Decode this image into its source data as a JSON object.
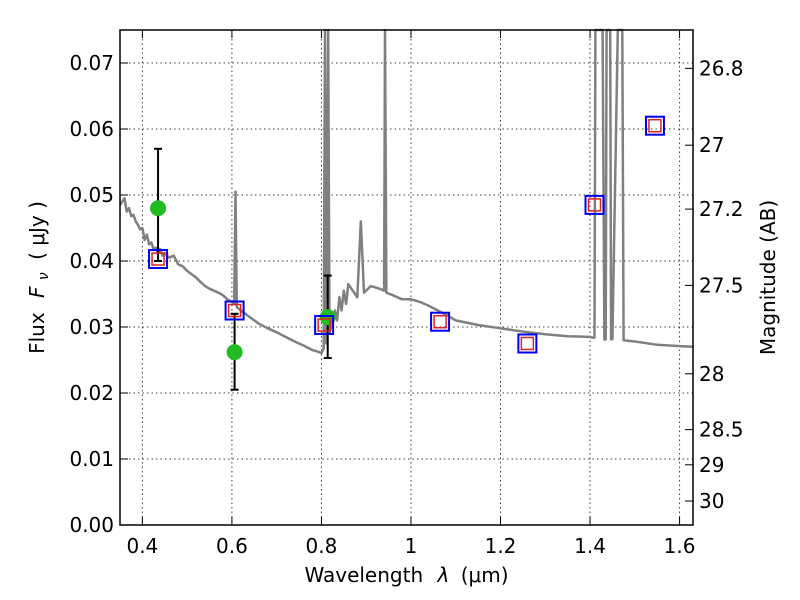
{
  "chart_data": {
    "type": "scatter",
    "title": "",
    "xlabel": "Wavelength",
    "xlabel_symbol": "λ",
    "xlabel_unit": "(μm)",
    "ylabel": "Flux",
    "ylabel_symbol": "F",
    "ylabel_subscript": "ν",
    "ylabel_unit": "( μJy )",
    "y2label": "Magnitude (AB)",
    "xlim": [
      0.35,
      1.63
    ],
    "ylim": [
      0.0,
      0.075
    ],
    "grid": true,
    "xticks": [
      {
        "value": 0.4,
        "label": "0.4"
      },
      {
        "value": 0.6,
        "label": "0.6"
      },
      {
        "value": 0.8,
        "label": "0.8"
      },
      {
        "value": 1.0,
        "label": "1"
      },
      {
        "value": 1.2,
        "label": "1.2"
      },
      {
        "value": 1.4,
        "label": "1.4"
      },
      {
        "value": 1.6,
        "label": "1.6"
      }
    ],
    "yticks": [
      {
        "value": 0.0,
        "label": "0.00"
      },
      {
        "value": 0.01,
        "label": "0.01"
      },
      {
        "value": 0.02,
        "label": "0.02"
      },
      {
        "value": 0.03,
        "label": "0.03"
      },
      {
        "value": 0.04,
        "label": "0.04"
      },
      {
        "value": 0.05,
        "label": "0.05"
      },
      {
        "value": 0.06,
        "label": "0.06"
      },
      {
        "value": 0.07,
        "label": "0.07"
      }
    ],
    "y2ticks": [
      {
        "value": 26.8,
        "label": "26.8"
      },
      {
        "value": 27.0,
        "label": "27"
      },
      {
        "value": 27.2,
        "label": "27.2"
      },
      {
        "value": 27.5,
        "label": "27.5"
      },
      {
        "value": 28.0,
        "label": "28"
      },
      {
        "value": 28.5,
        "label": "28.5"
      },
      {
        "value": 29.0,
        "label": "29"
      },
      {
        "value": 30.0,
        "label": "30"
      }
    ],
    "colors": {
      "template": "#808080",
      "observed": "#22bb22",
      "model_box": "#0000ee",
      "model_inner": "#dd2222",
      "errorbar": "#000000"
    },
    "series": [
      {
        "kind": "template_spectrum",
        "points": [
          [
            0.35,
            0.0485
          ],
          [
            0.36,
            0.0495
          ],
          [
            0.365,
            0.0475
          ],
          [
            0.37,
            0.048
          ],
          [
            0.375,
            0.0468
          ],
          [
            0.38,
            0.047
          ],
          [
            0.385,
            0.046
          ],
          [
            0.39,
            0.0455
          ],
          [
            0.395,
            0.0448
          ],
          [
            0.4,
            0.045
          ],
          [
            0.405,
            0.0432
          ],
          [
            0.41,
            0.044
          ],
          [
            0.415,
            0.0425
          ],
          [
            0.42,
            0.0428
          ],
          [
            0.425,
            0.0418
          ],
          [
            0.43,
            0.042
          ],
          [
            0.435,
            0.0412
          ],
          [
            0.44,
            0.0418
          ],
          [
            0.445,
            0.0408
          ],
          [
            0.45,
            0.0412
          ],
          [
            0.46,
            0.0405
          ],
          [
            0.47,
            0.0408
          ],
          [
            0.48,
            0.0395
          ],
          [
            0.49,
            0.0392
          ],
          [
            0.5,
            0.0385
          ],
          [
            0.51,
            0.038
          ],
          [
            0.52,
            0.0375
          ],
          [
            0.53,
            0.0368
          ],
          [
            0.54,
            0.0362
          ],
          [
            0.55,
            0.0358
          ],
          [
            0.56,
            0.0355
          ],
          [
            0.57,
            0.0352
          ],
          [
            0.58,
            0.0348
          ],
          [
            0.59,
            0.0342
          ],
          [
            0.6,
            0.0338
          ],
          [
            0.605,
            0.0335
          ],
          [
            0.608,
            0.0505
          ],
          [
            0.611,
            0.033
          ],
          [
            0.62,
            0.0325
          ],
          [
            0.64,
            0.0315
          ],
          [
            0.66,
            0.0305
          ],
          [
            0.68,
            0.0298
          ],
          [
            0.7,
            0.0292
          ],
          [
            0.72,
            0.0285
          ],
          [
            0.74,
            0.0278
          ],
          [
            0.76,
            0.0272
          ],
          [
            0.78,
            0.0265
          ],
          [
            0.795,
            0.0262
          ],
          [
            0.8,
            0.026
          ],
          [
            0.805,
            0.0268
          ],
          [
            0.808,
            0.075
          ],
          [
            0.811,
            0.0275
          ],
          [
            0.815,
            0.075
          ],
          [
            0.818,
            0.029
          ],
          [
            0.83,
            0.0325
          ],
          [
            0.835,
            0.031
          ],
          [
            0.84,
            0.0345
          ],
          [
            0.845,
            0.0325
          ],
          [
            0.85,
            0.0355
          ],
          [
            0.855,
            0.0335
          ],
          [
            0.86,
            0.0365
          ],
          [
            0.87,
            0.0355
          ],
          [
            0.88,
            0.0345
          ],
          [
            0.888,
            0.046
          ],
          [
            0.895,
            0.0352
          ],
          [
            0.91,
            0.0362
          ],
          [
            0.93,
            0.0358
          ],
          [
            0.94,
            0.0355
          ],
          [
            0.942,
            0.075
          ],
          [
            0.945,
            0.0352
          ],
          [
            0.96,
            0.0348
          ],
          [
            0.98,
            0.0342
          ],
          [
            1.0,
            0.0342
          ],
          [
            1.02,
            0.0338
          ],
          [
            1.04,
            0.0332
          ],
          [
            1.06,
            0.0325
          ],
          [
            1.08,
            0.0318
          ],
          [
            1.1,
            0.031
          ],
          [
            1.15,
            0.0303
          ],
          [
            1.2,
            0.0298
          ],
          [
            1.25,
            0.0293
          ],
          [
            1.3,
            0.0289
          ],
          [
            1.35,
            0.0286
          ],
          [
            1.4,
            0.0285
          ],
          [
            1.405,
            0.0284
          ],
          [
            1.41,
            0.0284
          ],
          [
            1.412,
            0.075
          ],
          [
            1.428,
            0.075
          ],
          [
            1.432,
            0.0281
          ],
          [
            1.435,
            0.0281
          ],
          [
            1.437,
            0.075
          ],
          [
            1.445,
            0.075
          ],
          [
            1.447,
            0.0281
          ],
          [
            1.45,
            0.0282
          ],
          [
            1.462,
            0.075
          ],
          [
            1.472,
            0.075
          ],
          [
            1.475,
            0.028
          ],
          [
            1.5,
            0.0278
          ],
          [
            1.55,
            0.0273
          ],
          [
            1.6,
            0.0271
          ],
          [
            1.63,
            0.027
          ]
        ]
      },
      {
        "kind": "observed",
        "points": [
          {
            "x": 0.435,
            "y": 0.048,
            "ylow": 0.04,
            "yhigh": 0.057
          },
          {
            "x": 0.606,
            "y": 0.0262,
            "ylow": 0.0205,
            "yhigh": 0.032
          },
          {
            "x": 0.814,
            "y": 0.0315,
            "ylow": 0.0253,
            "yhigh": 0.0378
          }
        ]
      },
      {
        "kind": "model_photometry",
        "points": [
          {
            "x": 0.435,
            "y": 0.0403
          },
          {
            "x": 0.606,
            "y": 0.0325
          },
          {
            "x": 0.806,
            "y": 0.0303
          },
          {
            "x": 1.065,
            "y": 0.0308
          },
          {
            "x": 1.26,
            "y": 0.0275
          },
          {
            "x": 1.41,
            "y": 0.0485
          },
          {
            "x": 1.545,
            "y": 0.0605
          }
        ]
      }
    ]
  }
}
